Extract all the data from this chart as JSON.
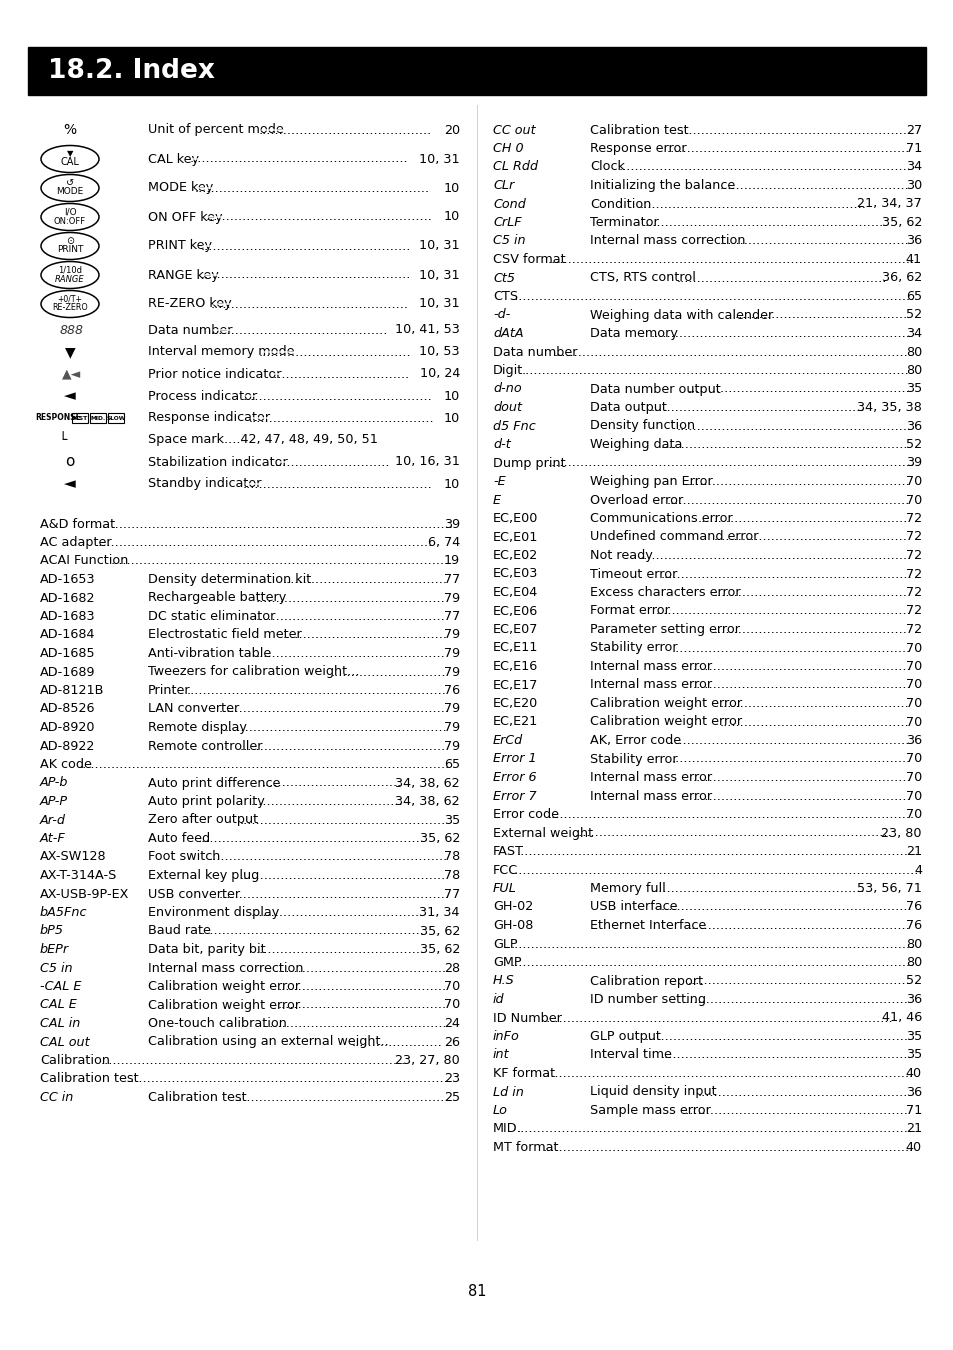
{
  "title": "18.2. Index",
  "page_number": "81",
  "bg_color": "#ffffff",
  "header_bg": "#000000",
  "header_text_color": "#ffffff",
  "body_fontsize": 9.2,
  "left_col2": [
    {
      "label": "A&D format",
      "sub": "",
      "pages": "39"
    },
    {
      "label": "AC adapter",
      "sub": "",
      "pages": "6, 74"
    },
    {
      "label": "ACAI Function",
      "sub": "",
      "pages": "19"
    },
    {
      "label": "AD-1653",
      "sub": "Density determination kit",
      "pages": "77"
    },
    {
      "label": "AD-1682",
      "sub": "Rechargeable battery",
      "pages": "79"
    },
    {
      "label": "AD-1683",
      "sub": "DC static eliminator",
      "pages": "77"
    },
    {
      "label": "AD-1684",
      "sub": "Electrostatic field meter",
      "pages": "79"
    },
    {
      "label": "AD-1685",
      "sub": "Anti-vibration table",
      "pages": "79"
    },
    {
      "label": "AD-1689",
      "sub": "Tweezers for calibration weight...",
      "pages": "79"
    },
    {
      "label": "AD-8121B",
      "sub": "Printer",
      "pages": "76"
    },
    {
      "label": "AD-8526",
      "sub": "LAN converter",
      "pages": "79"
    },
    {
      "label": "AD-8920",
      "sub": "Remote display",
      "pages": "79"
    },
    {
      "label": "AD-8922",
      "sub": "Remote controller",
      "pages": "79"
    },
    {
      "label": "AK code",
      "sub": "",
      "pages": "65"
    },
    {
      "label": "AP-b",
      "sub": "Auto print difference",
      "pages": "34, 38, 62",
      "italic": true
    },
    {
      "label": "AP-P",
      "sub": "Auto print polarity",
      "pages": "34, 38, 62",
      "italic": true
    },
    {
      "label": "Ar-d",
      "sub": "Zero after output",
      "pages": "35",
      "italic": true
    },
    {
      "label": "At-F",
      "sub": "Auto feed",
      "pages": "35, 62",
      "italic": true
    },
    {
      "label": "AX-SW128",
      "sub": "Foot switch",
      "pages": "78"
    },
    {
      "label": "AX-T-314A-S",
      "sub": "External key plug",
      "pages": "78"
    },
    {
      "label": "AX-USB-9P-EX",
      "sub": "USB converter",
      "pages": "77"
    },
    {
      "label": "bA5Fnc",
      "sub": "Environment display",
      "pages": "31, 34",
      "italic": true
    },
    {
      "label": "bP5",
      "sub": "Baud rate",
      "pages": "35, 62",
      "italic": true
    },
    {
      "label": "bEPr",
      "sub": "Data bit, parity bit",
      "pages": "35, 62",
      "italic": true
    },
    {
      "label": "C5 in",
      "sub": "Internal mass correction",
      "pages": "28",
      "italic": true
    },
    {
      "label": "-CAL E",
      "sub": "Calibration weight error",
      "pages": "70",
      "italic": true
    },
    {
      "label": "CAL E",
      "sub": "Calibration weight error",
      "pages": "70",
      "italic": true
    },
    {
      "label": "CAL in",
      "sub": "One-touch calibration",
      "pages": "24",
      "italic": true
    },
    {
      "label": "CAL out",
      "sub": "Calibration using an external weight..",
      "pages": "26",
      "italic": true
    },
    {
      "label": "Calibration",
      "sub": "",
      "pages": "23, 27, 80"
    },
    {
      "label": "Calibration test",
      "sub": "",
      "pages": "23"
    },
    {
      "label": "CC in",
      "sub": "Calibration test",
      "pages": "25",
      "italic": true
    }
  ],
  "right_col": [
    {
      "label": "CC out",
      "sub": "Calibration test",
      "pages": "27",
      "italic": true
    },
    {
      "label": "CH 0",
      "sub": "Response error",
      "pages": "71",
      "italic": true
    },
    {
      "label": "CL Rdd",
      "sub": "Clock",
      "pages": "34",
      "italic": true
    },
    {
      "label": "CLr",
      "sub": "Initializing the balance",
      "pages": "30",
      "italic": true
    },
    {
      "label": "Cond",
      "sub": "Condition",
      "pages": "21, 34, 37",
      "italic": true
    },
    {
      "label": "CrLF",
      "sub": "Terminator",
      "pages": "35, 62",
      "italic": true
    },
    {
      "label": "C5 in",
      "sub": "Internal mass correction",
      "pages": "36",
      "italic": true
    },
    {
      "label": "CSV format",
      "sub": "",
      "pages": "41"
    },
    {
      "label": "Ct5",
      "sub": "CTS, RTS control",
      "pages": "36, 62",
      "italic": true
    },
    {
      "label": "CTS",
      "sub": "",
      "pages": "65"
    },
    {
      "label": "-d-",
      "sub": "Weighing data with calender",
      "pages": "52",
      "italic": true
    },
    {
      "label": "dAtA",
      "sub": "Data memory",
      "pages": "34",
      "italic": true
    },
    {
      "label": "Data number",
      "sub": "",
      "pages": "80"
    },
    {
      "label": "Digit",
      "sub": "",
      "pages": "80"
    },
    {
      "label": "d-no",
      "sub": "Data number output",
      "pages": "35",
      "italic": true
    },
    {
      "label": "dout",
      "sub": "Data output",
      "pages": "34, 35, 38",
      "italic": true
    },
    {
      "label": "d5 Fnc",
      "sub": "Density function",
      "pages": "36",
      "italic": true
    },
    {
      "label": "d-t",
      "sub": "Weighing data",
      "pages": "52",
      "italic": true
    },
    {
      "label": "Dump print",
      "sub": "",
      "pages": "39"
    },
    {
      "label": "-E",
      "sub": "Weighing pan Error",
      "pages": "70",
      "italic": true
    },
    {
      "label": "E",
      "sub": "Overload error",
      "pages": "70",
      "italic": true
    },
    {
      "label": "EC,E00",
      "sub": "Communications error",
      "pages": "72"
    },
    {
      "label": "EC,E01",
      "sub": "Undefined command error",
      "pages": "72"
    },
    {
      "label": "EC,E02",
      "sub": "Not ready",
      "pages": "72"
    },
    {
      "label": "EC,E03",
      "sub": "Timeout error",
      "pages": "72"
    },
    {
      "label": "EC,E04",
      "sub": "Excess characters error",
      "pages": "72"
    },
    {
      "label": "EC,E06",
      "sub": "Format error",
      "pages": "72"
    },
    {
      "label": "EC,E07",
      "sub": "Parameter setting error",
      "pages": "72"
    },
    {
      "label": "EC,E11",
      "sub": "Stability error",
      "pages": "70"
    },
    {
      "label": "EC,E16",
      "sub": "Internal mass error",
      "pages": "70"
    },
    {
      "label": "EC,E17",
      "sub": "Internal mass error",
      "pages": "70"
    },
    {
      "label": "EC,E20",
      "sub": "Calibration weight error",
      "pages": "70"
    },
    {
      "label": "EC,E21",
      "sub": "Calibration weight error",
      "pages": "70"
    },
    {
      "label": "ErCd",
      "sub": "AK, Error code",
      "pages": "36",
      "italic": true
    },
    {
      "label": "Error 1",
      "sub": "Stability error",
      "pages": "70",
      "italic": true
    },
    {
      "label": "Error 6",
      "sub": "Internal mass error",
      "pages": "70",
      "italic": true
    },
    {
      "label": "Error 7",
      "sub": "Internal mass error",
      "pages": "70",
      "italic": true
    },
    {
      "label": "Error code",
      "sub": "",
      "pages": "70"
    },
    {
      "label": "External weight",
      "sub": "",
      "pages": "23, 80"
    },
    {
      "label": "FAST",
      "sub": "",
      "pages": "21"
    },
    {
      "label": "FCC",
      "sub": "",
      "pages": "4"
    },
    {
      "label": "FUL",
      "sub": "Memory full",
      "pages": "53, 56, 71",
      "italic": true
    },
    {
      "label": "GH-02",
      "sub": "USB interface",
      "pages": "76"
    },
    {
      "label": "GH-08",
      "sub": "Ethernet Interface",
      "pages": "76"
    },
    {
      "label": "GLP",
      "sub": "",
      "pages": "80"
    },
    {
      "label": "GMP",
      "sub": "",
      "pages": "80"
    },
    {
      "label": "H.S",
      "sub": "Calibration report",
      "pages": "52",
      "italic": true
    },
    {
      "label": "id",
      "sub": "ID number setting",
      "pages": "36",
      "italic": true
    },
    {
      "label": "ID Number",
      "sub": "",
      "pages": "41, 46"
    },
    {
      "label": "inFo",
      "sub": "GLP output",
      "pages": "35",
      "italic": true
    },
    {
      "label": "int",
      "sub": "Interval time",
      "pages": "35",
      "italic": true
    },
    {
      "label": "KF format",
      "sub": "",
      "pages": "40"
    },
    {
      "label": "Ld in",
      "sub": "Liquid density input",
      "pages": "36",
      "italic": true
    },
    {
      "label": "Lo",
      "sub": "Sample mass error",
      "pages": "71",
      "italic": true
    },
    {
      "label": "MID.",
      "sub": "",
      "pages": "21"
    },
    {
      "label": "MT format",
      "sub": "",
      "pages": "40"
    }
  ]
}
